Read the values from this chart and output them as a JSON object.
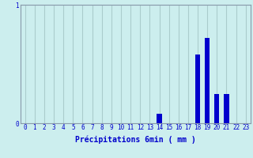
{
  "xlabel": "Précipitations 6min ( mm )",
  "values": [
    0,
    0,
    0,
    0,
    0,
    0,
    0,
    0,
    0,
    0,
    0,
    0,
    0,
    0,
    0.08,
    0,
    0,
    0,
    0.58,
    0.72,
    0.25,
    0.25,
    0,
    0
  ],
  "categories": [
    0,
    1,
    2,
    3,
    4,
    5,
    6,
    7,
    8,
    9,
    10,
    11,
    12,
    13,
    14,
    15,
    16,
    17,
    18,
    19,
    20,
    21,
    22,
    23
  ],
  "bar_color": "#0000cc",
  "background_color": "#cceeee",
  "grid_color": "#aacccc",
  "axis_color": "#8899aa",
  "text_color": "#0000cc",
  "ylim": [
    0,
    1.0
  ],
  "yticks": [
    0,
    1
  ],
  "xlabel_fontsize": 7,
  "tick_fontsize": 5.5
}
